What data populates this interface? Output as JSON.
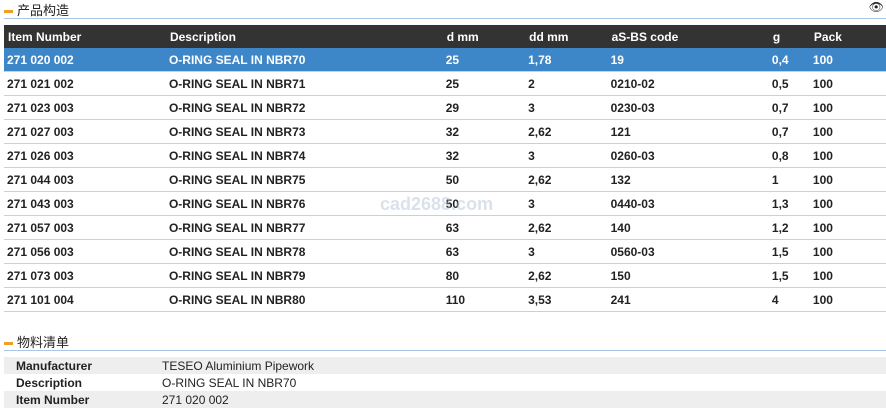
{
  "section1": {
    "title": "产品构造",
    "eye_icon": "eye-icon"
  },
  "table": {
    "columns": [
      "Item Number",
      "Description",
      "d mm",
      "dd mm",
      "aS-BS code",
      "g",
      "Pack"
    ],
    "rows": [
      [
        "271 020 002",
        "O-RING SEAL IN NBR70",
        "25",
        "1,78",
        "19",
        "0,4",
        "100"
      ],
      [
        "271 021 002",
        "O-RING SEAL IN NBR71",
        "25",
        "2",
        "0210-02",
        "0,5",
        "100"
      ],
      [
        "271 023 003",
        "O-RING SEAL IN NBR72",
        "29",
        "3",
        "0230-03",
        "0,7",
        "100"
      ],
      [
        "271 027 003",
        "O-RING SEAL IN NBR73",
        "32",
        "2,62",
        "121",
        "0,7",
        "100"
      ],
      [
        "271 026 003",
        "O-RING SEAL IN NBR74",
        "32",
        "3",
        "0260-03",
        "0,8",
        "100"
      ],
      [
        "271 044 003",
        "O-RING SEAL IN NBR75",
        "50",
        "2,62",
        "132",
        "1",
        "100"
      ],
      [
        "271 043 003",
        "O-RING SEAL IN NBR76",
        "50",
        "3",
        "0440-03",
        "1,3",
        "100"
      ],
      [
        "271 057 003",
        "O-RING SEAL IN NBR77",
        "63",
        "2,62",
        "140",
        "1,2",
        "100"
      ],
      [
        "271 056 003",
        "O-RING SEAL IN NBR78",
        "63",
        "3",
        "0560-03",
        "1,5",
        "100"
      ],
      [
        "271 073 003",
        "O-RING SEAL IN NBR79",
        "80",
        "2,62",
        "150",
        "1,5",
        "100"
      ],
      [
        "271 101 004",
        "O-RING SEAL IN NBR80",
        "110",
        "3,53",
        "241",
        "4",
        "100"
      ]
    ],
    "selected_row": 0,
    "selected_color": "#3d86c8"
  },
  "watermark": "cad2688.com",
  "section2": {
    "title": "物料清单"
  },
  "bom": [
    {
      "label": "Manufacturer",
      "value": "TESEO Aluminium Pipework"
    },
    {
      "label": "Description",
      "value": "O-RING SEAL IN NBR70"
    },
    {
      "label": "Item Number",
      "value": "271 020 002"
    }
  ]
}
